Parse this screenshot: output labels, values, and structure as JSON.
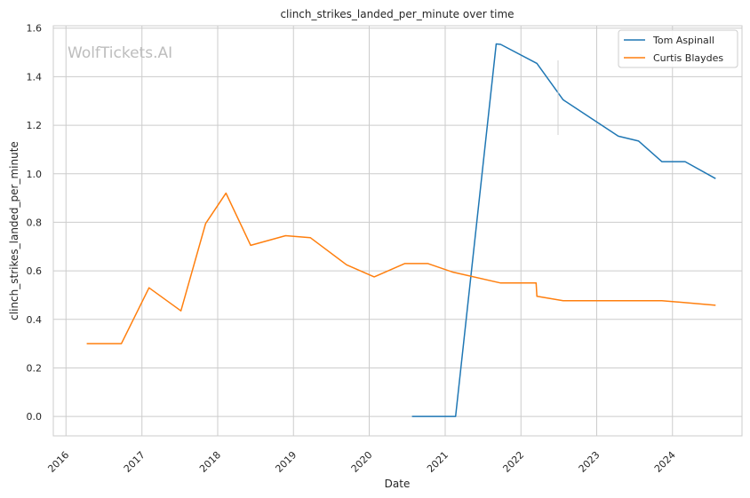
{
  "chart_data": {
    "type": "line",
    "title": "clinch_strikes_landed_per_minute over time",
    "xlabel": "Date",
    "ylabel": "clinch_strikes_landed_per_minute",
    "watermark": "WolfTickets.AI",
    "xlim": [
      "2015-11-01",
      "2024-12-01"
    ],
    "ylim": [
      -0.08,
      1.61
    ],
    "x_ticks": [
      "2016",
      "2017",
      "2018",
      "2019",
      "2020",
      "2021",
      "2022",
      "2023",
      "2024"
    ],
    "y_ticks": [
      "0.0",
      "0.2",
      "0.4",
      "0.6",
      "0.8",
      "1.0",
      "1.2",
      "1.4",
      "1.6"
    ],
    "grid": true,
    "legend_position": "top-right",
    "series": [
      {
        "name": "Tom Aspinall",
        "color": "#1f77b4",
        "points": [
          [
            "2020-07-25",
            0.0
          ],
          [
            "2021-02-20",
            0.0
          ],
          [
            "2021-09-04",
            1.535
          ],
          [
            "2021-09-25",
            1.533
          ],
          [
            "2022-03-19",
            1.455
          ],
          [
            "2022-07-23",
            1.305
          ],
          [
            "2023-04-15",
            1.155
          ],
          [
            "2023-07-22",
            1.135
          ],
          [
            "2023-11-11",
            1.05
          ],
          [
            "2024-03-02",
            1.05
          ],
          [
            "2024-07-27",
            0.98
          ]
        ]
      },
      {
        "name": "Curtis Blaydes",
        "color": "#ff7f0e",
        "points": [
          [
            "2016-04-10",
            0.3
          ],
          [
            "2016-09-24",
            0.3
          ],
          [
            "2017-02-04",
            0.53
          ],
          [
            "2017-07-08",
            0.435
          ],
          [
            "2017-11-04",
            0.795
          ],
          [
            "2018-02-10",
            0.92
          ],
          [
            "2018-06-09",
            0.705
          ],
          [
            "2018-11-24",
            0.745
          ],
          [
            "2019-03-23",
            0.737
          ],
          [
            "2019-09-14",
            0.625
          ],
          [
            "2020-01-25",
            0.575
          ],
          [
            "2020-06-20",
            0.63
          ],
          [
            "2020-10-10",
            0.63
          ],
          [
            "2021-02-06",
            0.595
          ],
          [
            "2021-09-25",
            0.55
          ],
          [
            "2022-03-15",
            0.55
          ],
          [
            "2022-03-19",
            0.495
          ],
          [
            "2022-07-23",
            0.477
          ],
          [
            "2023-03-25",
            0.477
          ],
          [
            "2023-11-11",
            0.477
          ],
          [
            "2024-07-27",
            0.458
          ]
        ]
      }
    ]
  }
}
